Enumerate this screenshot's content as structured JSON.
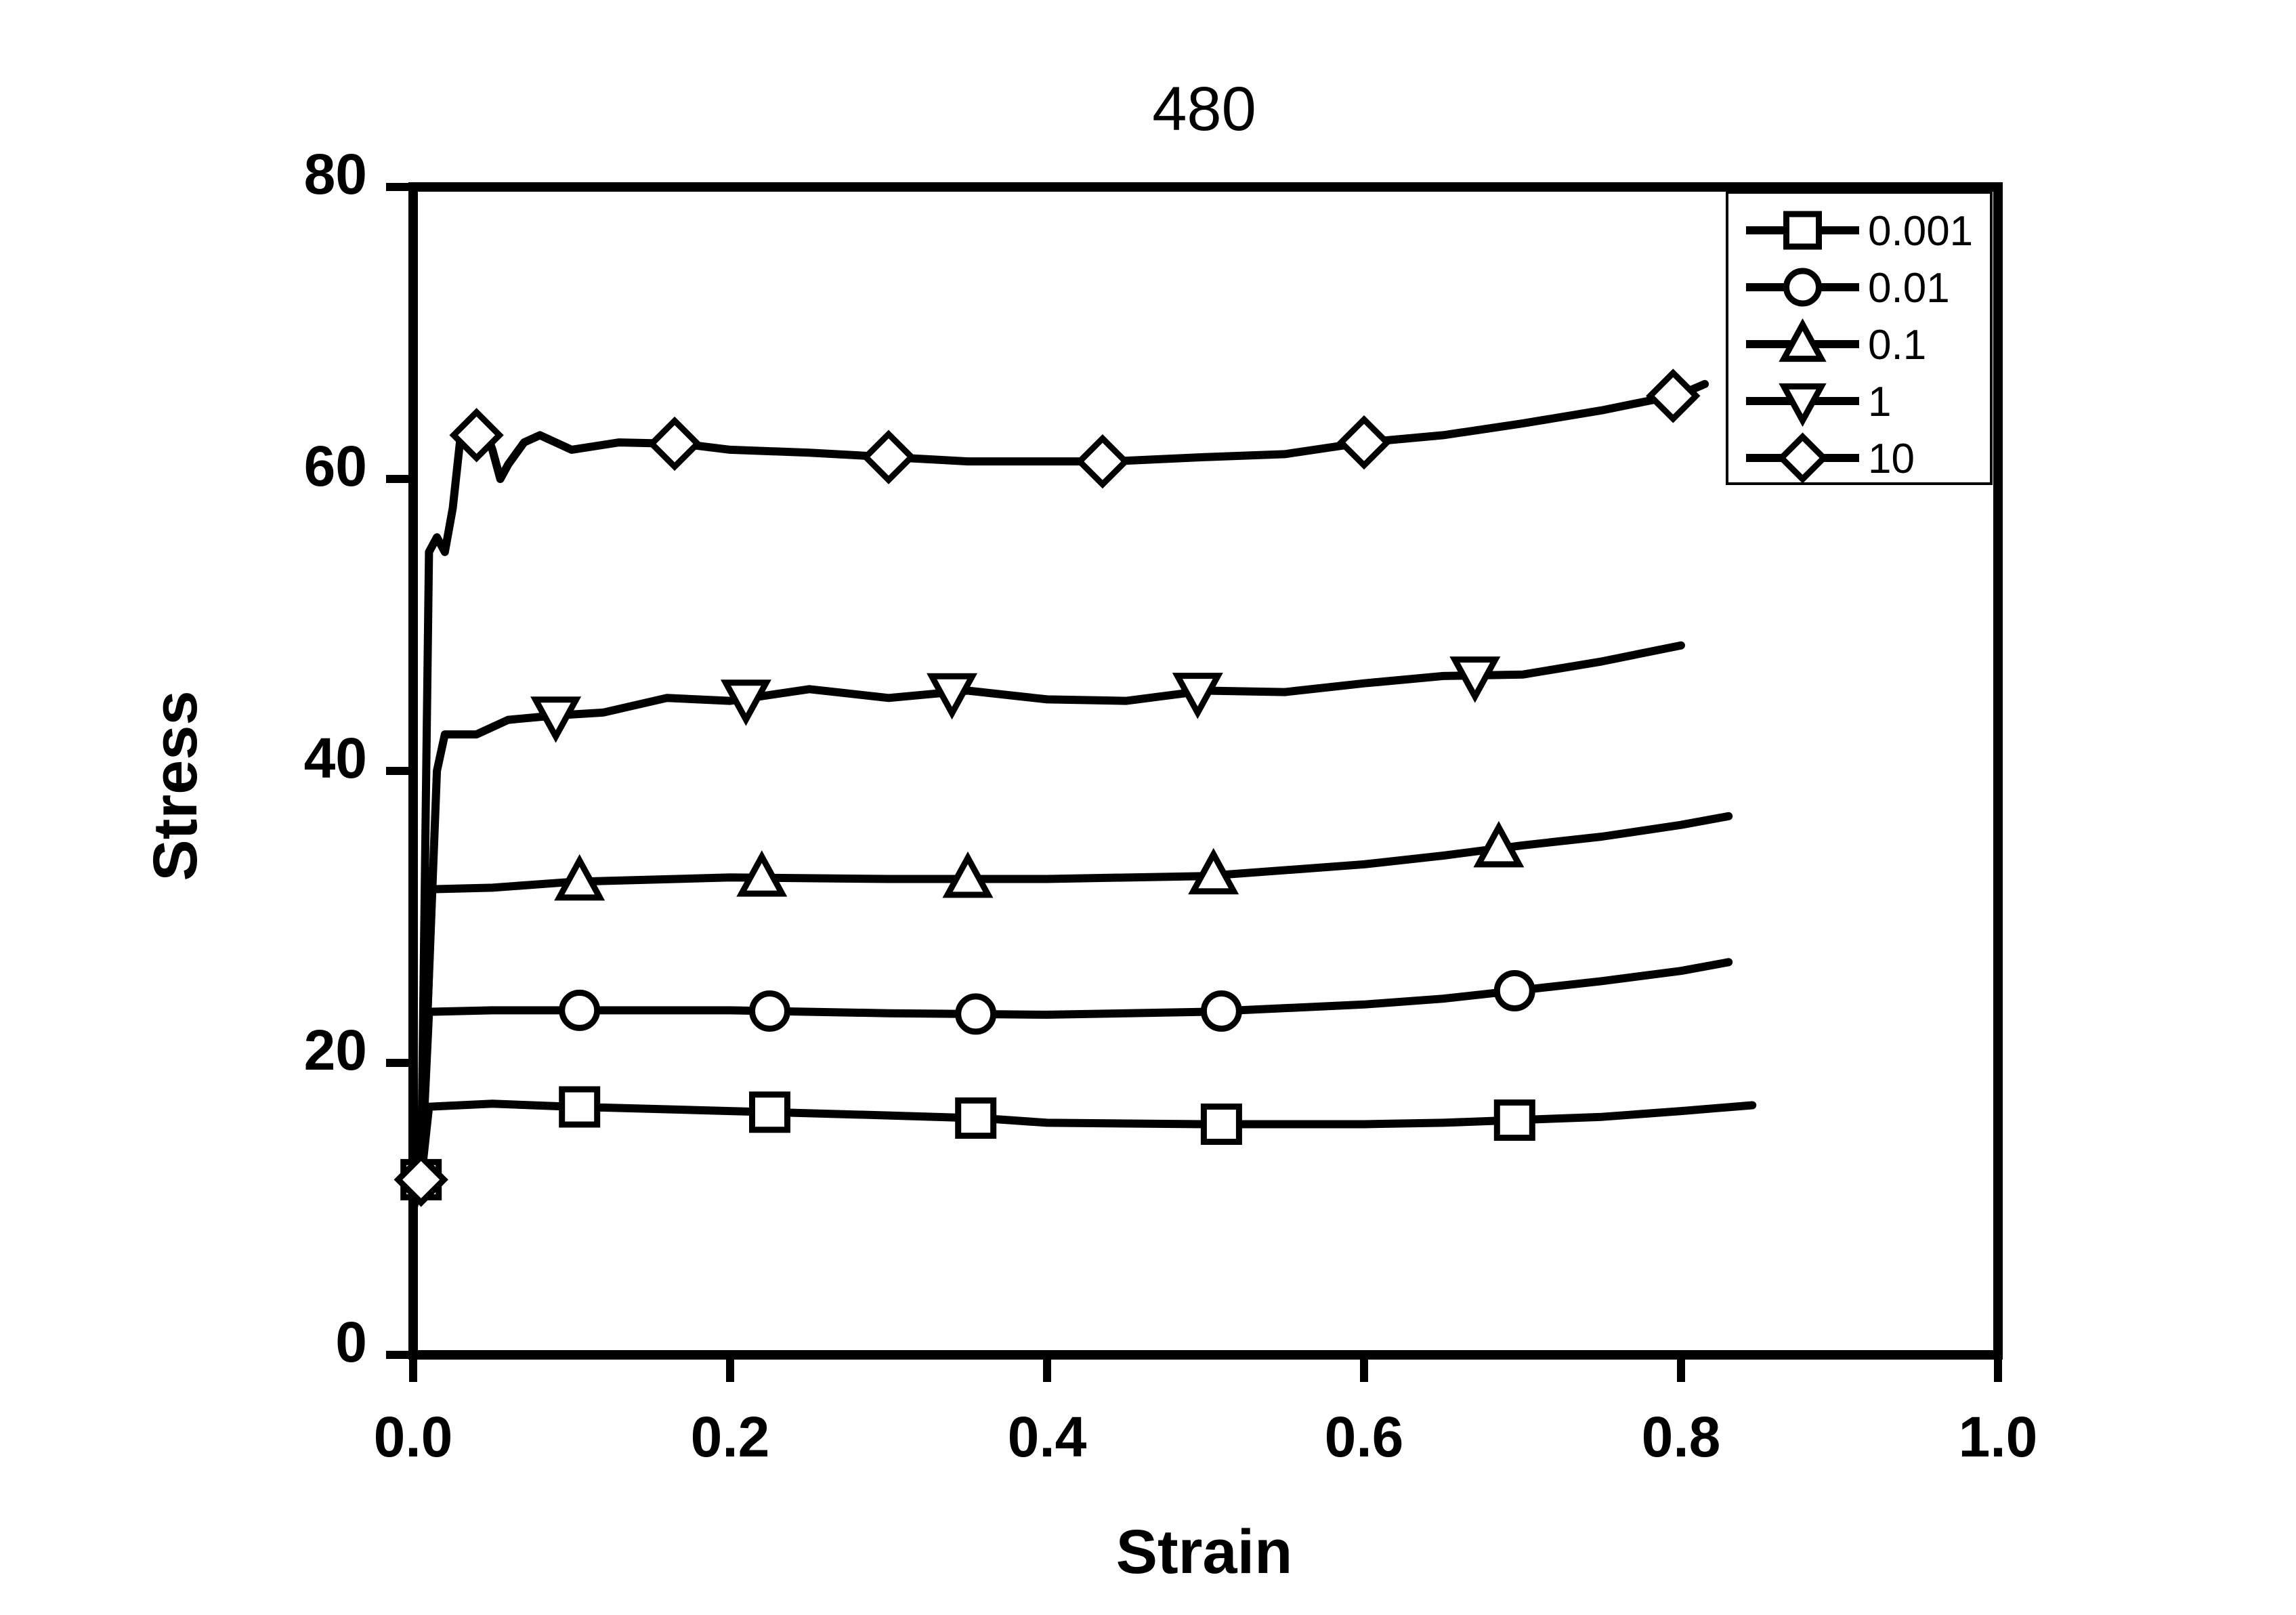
{
  "chart_data": {
    "type": "line",
    "title": "480",
    "xlabel": "Strain",
    "ylabel": "Stress",
    "xlim": [
      0.0,
      1.0
    ],
    "ylim": [
      0,
      80
    ],
    "x_ticks": [
      "0.0",
      "0.2",
      "0.4",
      "0.6",
      "0.8",
      "1.0"
    ],
    "y_ticks": [
      "0",
      "20",
      "40",
      "60",
      "80"
    ],
    "grid": false,
    "legend_position": "top-right",
    "line_color": "#000000",
    "series": [
      {
        "name": "0.001",
        "marker": "square",
        "points": [
          [
            0.0,
            10.0
          ],
          [
            0.005,
            12.0
          ],
          [
            0.01,
            17.0
          ],
          [
            0.05,
            17.2
          ],
          [
            0.1,
            17.0
          ],
          [
            0.2,
            16.7
          ],
          [
            0.3,
            16.4
          ],
          [
            0.36,
            16.2
          ],
          [
            0.4,
            15.9
          ],
          [
            0.5,
            15.8
          ],
          [
            0.6,
            15.8
          ],
          [
            0.65,
            15.9
          ],
          [
            0.7,
            16.1
          ],
          [
            0.75,
            16.3
          ],
          [
            0.8,
            16.7
          ],
          [
            0.845,
            17.1
          ]
        ],
        "marker_x": [
          0.005,
          0.105,
          0.225,
          0.355,
          0.51,
          0.695
        ]
      },
      {
        "name": "0.01",
        "marker": "circle",
        "points": [
          [
            0.0,
            10.0
          ],
          [
            0.005,
            12.0
          ],
          [
            0.01,
            23.5
          ],
          [
            0.05,
            23.6
          ],
          [
            0.1,
            23.6
          ],
          [
            0.2,
            23.6
          ],
          [
            0.3,
            23.4
          ],
          [
            0.4,
            23.3
          ],
          [
            0.5,
            23.5
          ],
          [
            0.6,
            24.0
          ],
          [
            0.65,
            24.4
          ],
          [
            0.7,
            25.0
          ],
          [
            0.75,
            25.6
          ],
          [
            0.8,
            26.3
          ],
          [
            0.83,
            26.9
          ]
        ],
        "marker_x": [
          0.105,
          0.225,
          0.355,
          0.51,
          0.695
        ]
      },
      {
        "name": "0.1",
        "marker": "triangle-up",
        "points": [
          [
            0.0,
            10.0
          ],
          [
            0.005,
            12.0
          ],
          [
            0.012,
            31.9
          ],
          [
            0.05,
            32.0
          ],
          [
            0.1,
            32.4
          ],
          [
            0.2,
            32.7
          ],
          [
            0.3,
            32.6
          ],
          [
            0.4,
            32.6
          ],
          [
            0.5,
            32.8
          ],
          [
            0.6,
            33.6
          ],
          [
            0.65,
            34.2
          ],
          [
            0.7,
            34.9
          ],
          [
            0.75,
            35.5
          ],
          [
            0.8,
            36.3
          ],
          [
            0.83,
            36.9
          ]
        ],
        "marker_x": [
          0.105,
          0.22,
          0.35,
          0.505,
          0.685
        ]
      },
      {
        "name": "1",
        "marker": "triangle-down",
        "points": [
          [
            0.0,
            10.0
          ],
          [
            0.005,
            12.0
          ],
          [
            0.015,
            40.0
          ],
          [
            0.02,
            42.5
          ],
          [
            0.04,
            42.5
          ],
          [
            0.06,
            43.5
          ],
          [
            0.09,
            43.8
          ],
          [
            0.12,
            44.0
          ],
          [
            0.16,
            45.0
          ],
          [
            0.2,
            44.8
          ],
          [
            0.25,
            45.6
          ],
          [
            0.3,
            45.0
          ],
          [
            0.35,
            45.5
          ],
          [
            0.4,
            44.9
          ],
          [
            0.45,
            44.8
          ],
          [
            0.5,
            45.5
          ],
          [
            0.55,
            45.4
          ],
          [
            0.6,
            46.0
          ],
          [
            0.65,
            46.5
          ],
          [
            0.7,
            46.6
          ],
          [
            0.75,
            47.5
          ],
          [
            0.8,
            48.6
          ]
        ],
        "marker_x": [
          0.09,
          0.21,
          0.34,
          0.495,
          0.67
        ]
      },
      {
        "name": "10",
        "marker": "diamond",
        "points": [
          [
            0.0,
            10.0
          ],
          [
            0.005,
            12.0
          ],
          [
            0.01,
            55.0
          ],
          [
            0.015,
            56.0
          ],
          [
            0.02,
            55.0
          ],
          [
            0.025,
            58.0
          ],
          [
            0.03,
            63.0
          ],
          [
            0.035,
            62.5
          ],
          [
            0.045,
            63.5
          ],
          [
            0.05,
            62.0
          ],
          [
            0.055,
            60.0
          ],
          [
            0.06,
            61.0
          ],
          [
            0.07,
            62.5
          ],
          [
            0.08,
            63.0
          ],
          [
            0.1,
            62.0
          ],
          [
            0.13,
            62.5
          ],
          [
            0.17,
            62.4
          ],
          [
            0.2,
            62.0
          ],
          [
            0.25,
            61.8
          ],
          [
            0.3,
            61.5
          ],
          [
            0.35,
            61.2
          ],
          [
            0.4,
            61.2
          ],
          [
            0.44,
            61.2
          ],
          [
            0.5,
            61.5
          ],
          [
            0.55,
            61.7
          ],
          [
            0.6,
            62.5
          ],
          [
            0.65,
            63.0
          ],
          [
            0.7,
            63.8
          ],
          [
            0.75,
            64.7
          ],
          [
            0.8,
            65.8
          ],
          [
            0.815,
            66.5
          ]
        ],
        "marker_x": [
          0.005,
          0.04,
          0.165,
          0.3,
          0.435,
          0.6,
          0.795
        ]
      }
    ]
  }
}
